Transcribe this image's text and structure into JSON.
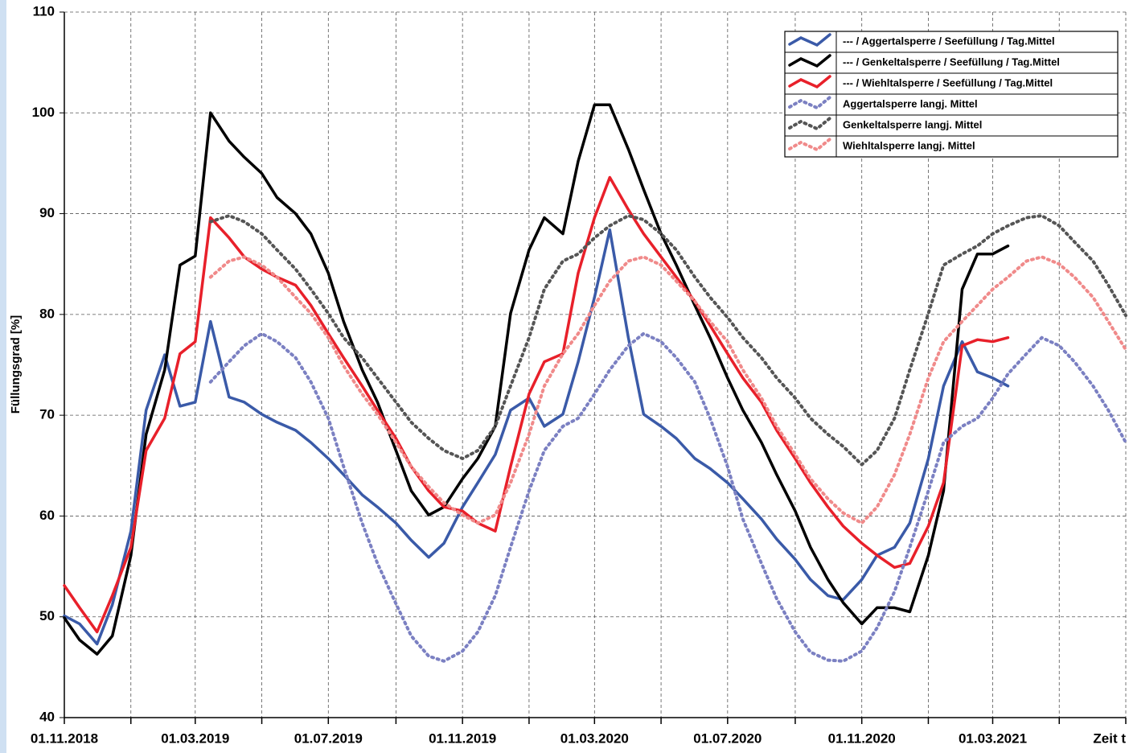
{
  "chart_data": {
    "type": "line",
    "y_label": "Füllungsgrad [%]",
    "ylim": [
      40,
      110
    ],
    "yticks": [
      40,
      50,
      60,
      70,
      80,
      90,
      100,
      110
    ],
    "xlim": [
      "01.11.2018",
      "01.07.2021"
    ],
    "xticks": [
      "01.11.2018",
      {
        "value": "01.01.2019",
        "label": null
      },
      "01.03.2019",
      {
        "value": "01.05.2019",
        "label": null
      },
      "01.07.2019",
      {
        "value": "01.09.2019",
        "label": null
      },
      "01.11.2019",
      {
        "value": "01.01.2020",
        "label": null
      },
      "01.03.2020",
      {
        "value": "01.05.2020",
        "label": null
      },
      "01.07.2020",
      {
        "value": "01.09.2020",
        "label": null
      },
      "01.11.2020",
      {
        "value": "01.01.2021",
        "label": null
      },
      "01.03.2021",
      {
        "value": "01.05.2021",
        "label": null
      },
      {
        "value": "01.07.2021",
        "label": "Zeit t"
      }
    ],
    "grid": true,
    "legend": "upper right",
    "x": [
      "01.11.2018",
      "15.11.2018",
      "01.12.2018",
      "15.12.2018",
      "01.01.2019",
      "15.01.2019",
      "01.02.2019",
      "15.02.2019",
      "01.03.2019",
      "15.03.2019",
      "01.04.2019",
      "15.04.2019",
      "01.05.2019",
      "15.05.2019",
      "01.06.2019",
      "15.06.2019",
      "01.07.2019",
      "15.07.2019",
      "01.08.2019",
      "15.08.2019",
      "01.09.2019",
      "15.09.2019",
      "01.10.2019",
      "15.10.2019",
      "01.11.2019",
      "15.11.2019",
      "01.12.2019",
      "15.12.2019",
      "01.01.2020",
      "15.01.2020",
      "01.02.2020",
      "15.02.2020",
      "01.03.2020",
      "15.03.2020",
      "01.04.2020",
      "15.04.2020",
      "01.05.2020",
      "15.05.2020",
      "01.06.2020",
      "15.06.2020",
      "01.07.2020",
      "15.07.2020",
      "01.08.2020",
      "15.08.2020",
      "01.09.2020",
      "15.09.2020",
      "01.10.2020",
      "15.10.2020",
      "01.11.2020",
      "15.11.2020",
      "01.12.2020",
      "15.12.2020",
      "01.01.2021",
      "15.01.2021",
      "01.02.2021",
      "15.02.2021",
      "01.03.2021",
      "15.03.2021",
      "01.04.2021",
      "15.04.2021",
      "01.05.2021",
      "15.05.2021",
      "01.06.2021",
      "15.06.2021",
      "01.07.2021"
    ],
    "series": [
      {
        "name": "--- / Aggertalsperre / Seefüllung / Tag.Mittel",
        "color": "#3a5aa8",
        "style": "solid",
        "values": [
          50.1,
          49.3,
          47.3,
          51.2,
          58.5,
          70.5,
          76,
          70.9,
          71.3,
          79.3,
          71.8,
          71.3,
          70.1,
          69.3,
          68.5,
          67.3,
          65.7,
          64.1,
          62.1,
          60.9,
          59.3,
          57.6,
          55.9,
          57.3,
          60.9,
          63.3,
          66.1,
          70.5,
          71.7,
          68.9,
          70.1,
          75.3,
          81.7,
          88.4,
          77.7,
          70.1,
          68.9,
          67.7,
          65.7,
          64.7,
          63.3,
          61.7,
          59.7,
          57.7,
          55.7,
          53.7,
          52.1,
          51.7,
          53.7,
          56.1,
          56.9,
          59.3,
          65.7,
          72.9,
          77.3,
          74.3,
          73.7,
          72.9,
          null,
          null,
          null,
          null,
          null,
          null,
          null
        ]
      },
      {
        "name": "--- / Genkeltalsperre / Seefüllung / Tag.Mittel",
        "color": "#000000",
        "style": "solid",
        "values": [
          49.9,
          47.7,
          46.3,
          48.1,
          56.1,
          68.1,
          74.5,
          84.9,
          85.8,
          100.0,
          97.2,
          95.6,
          94.0,
          91.6,
          90.0,
          88.0,
          84.1,
          79.3,
          74.5,
          71.3,
          66.5,
          62.5,
          60.1,
          60.9,
          63.7,
          65.7,
          68.9,
          80.1,
          86.4,
          89.6,
          88.0,
          95.2,
          100.8,
          100.8,
          96.4,
          92.4,
          88.0,
          84.9,
          80.9,
          77.7,
          73.7,
          70.5,
          67.3,
          64.1,
          60.5,
          56.9,
          53.7,
          51.4,
          49.3,
          50.9,
          50.9,
          50.5,
          56.1,
          62.5,
          82.5,
          86.0,
          86.0,
          86.8,
          null,
          null,
          null,
          null,
          null,
          null,
          null
        ]
      },
      {
        "name": "--- / Wiehltalsperre / Seefüllung / Tag.Mittel",
        "color": "#e8202a",
        "style": "solid",
        "values": [
          53.1,
          50.9,
          48.5,
          52.1,
          56.9,
          66.5,
          69.7,
          76.1,
          77.3,
          89.6,
          87.6,
          85.7,
          84.5,
          83.7,
          82.9,
          80.9,
          78.1,
          75.7,
          72.9,
          70.5,
          67.7,
          64.9,
          62.5,
          60.9,
          60.5,
          59.3,
          58.5,
          64.9,
          72.1,
          75.3,
          76.1,
          84.1,
          89.6,
          93.6,
          90.4,
          88.0,
          85.7,
          83.7,
          81.3,
          78.9,
          76.1,
          73.7,
          71.3,
          68.5,
          65.7,
          63.3,
          60.9,
          59.0,
          57.3,
          56.1,
          54.9,
          55.3,
          59.0,
          63.3,
          76.9,
          77.5,
          77.3,
          77.7,
          null,
          null,
          null,
          null,
          null,
          null,
          null
        ]
      },
      {
        "name": "Aggertalsperre langj. Mittel",
        "color": "#7b80c2",
        "style": "dotted",
        "values": [
          null,
          null,
          null,
          null,
          null,
          null,
          null,
          null,
          null,
          73.3,
          75.3,
          76.9,
          78.1,
          77.3,
          75.7,
          73.3,
          69.7,
          64.9,
          59.3,
          55.3,
          51.3,
          48.1,
          46.1,
          45.6,
          46.6,
          48.5,
          52.1,
          56.9,
          62.5,
          66.5,
          68.9,
          69.7,
          72.1,
          74.5,
          76.9,
          78.1,
          77.3,
          75.7,
          73.3,
          69.7,
          64.9,
          59.7,
          55.3,
          51.8,
          48.5,
          46.5,
          45.7,
          45.6,
          46.6,
          48.9,
          52.5,
          56.9,
          62.5,
          67.3,
          68.9,
          69.7,
          71.7,
          74.1,
          76.1,
          77.7,
          76.9,
          75.3,
          72.9,
          70.5,
          67.3
        ]
      },
      {
        "name": "Genkeltalsperre langj. Mittel",
        "color": "#555555",
        "style": "dotted",
        "values": [
          null,
          null,
          null,
          null,
          null,
          null,
          null,
          null,
          null,
          89.2,
          89.8,
          89.2,
          88.0,
          86.4,
          84.5,
          82.5,
          80.1,
          77.7,
          75.7,
          73.7,
          71.3,
          69.3,
          67.7,
          66.5,
          65.7,
          66.5,
          68.9,
          72.9,
          77.7,
          82.5,
          85.3,
          86.0,
          87.6,
          88.8,
          89.8,
          89.4,
          88.0,
          86.4,
          83.7,
          81.7,
          79.7,
          77.7,
          75.7,
          73.7,
          71.7,
          69.7,
          68.1,
          66.9,
          65.1,
          66.5,
          69.7,
          74.5,
          80.1,
          84.9,
          86.0,
          86.8,
          88.0,
          88.8,
          89.6,
          89.8,
          88.8,
          87.2,
          85.3,
          82.9,
          79.9
        ]
      },
      {
        "name": "Wiehltalsperre langj. Mittel",
        "color": "#f08a8a",
        "style": "dotted",
        "values": [
          null,
          null,
          null,
          null,
          null,
          null,
          null,
          null,
          null,
          83.7,
          85.3,
          85.7,
          84.9,
          83.7,
          81.7,
          80.1,
          77.7,
          74.9,
          72.1,
          70.1,
          67.3,
          64.9,
          62.9,
          61.3,
          60.1,
          59.3,
          60.1,
          63.3,
          68.1,
          72.9,
          76.1,
          78.1,
          80.9,
          83.3,
          85.3,
          85.7,
          84.9,
          83.3,
          81.3,
          79.3,
          77.3,
          74.5,
          71.7,
          68.9,
          66.1,
          63.7,
          61.7,
          60.3,
          59.3,
          60.9,
          64.1,
          68.1,
          73.7,
          77.3,
          79.3,
          80.9,
          82.5,
          83.7,
          85.3,
          85.7,
          85.0,
          83.7,
          81.7,
          79.3,
          76.5
        ]
      }
    ]
  }
}
